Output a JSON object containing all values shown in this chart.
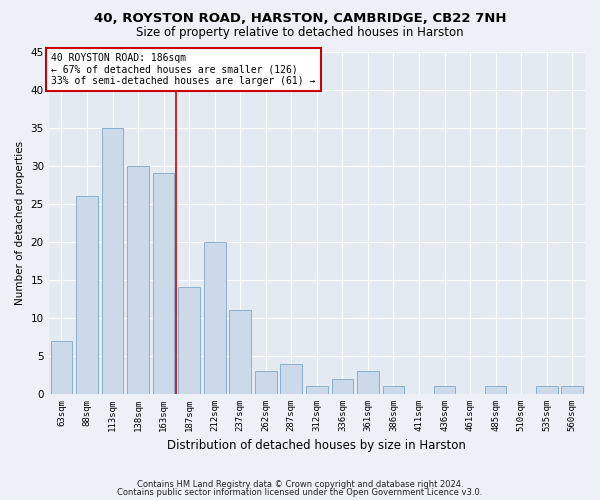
{
  "title_line1": "40, ROYSTON ROAD, HARSTON, CAMBRIDGE, CB22 7NH",
  "title_line2": "Size of property relative to detached houses in Harston",
  "xlabel": "Distribution of detached houses by size in Harston",
  "ylabel": "Number of detached properties",
  "categories": [
    "63sqm",
    "88sqm",
    "113sqm",
    "138sqm",
    "163sqm",
    "187sqm",
    "212sqm",
    "237sqm",
    "262sqm",
    "287sqm",
    "312sqm",
    "336sqm",
    "361sqm",
    "386sqm",
    "411sqm",
    "436sqm",
    "461sqm",
    "485sqm",
    "510sqm",
    "535sqm",
    "560sqm"
  ],
  "values": [
    7,
    26,
    35,
    30,
    29,
    14,
    20,
    11,
    3,
    4,
    1,
    2,
    3,
    1,
    0,
    1,
    0,
    1,
    0,
    1,
    1
  ],
  "bar_color": "#ccd9e8",
  "bar_edge_color": "#8ab0cc",
  "vline_x": 4.5,
  "vline_color": "#cc0000",
  "annotation_line1": "40 ROYSTON ROAD: 186sqm",
  "annotation_line2": "← 67% of detached houses are smaller (126)",
  "annotation_line3": "33% of semi-detached houses are larger (61) →",
  "annotation_box_color": "#ffffff",
  "annotation_box_edge": "#cc0000",
  "ylim": [
    0,
    45
  ],
  "yticks": [
    0,
    5,
    10,
    15,
    20,
    25,
    30,
    35,
    40,
    45
  ],
  "footer_line1": "Contains HM Land Registry data © Crown copyright and database right 2024.",
  "footer_line2": "Contains public sector information licensed under the Open Government Licence v3.0.",
  "bg_color": "#edf1f7",
  "plot_bg_color": "#e4eaf2"
}
